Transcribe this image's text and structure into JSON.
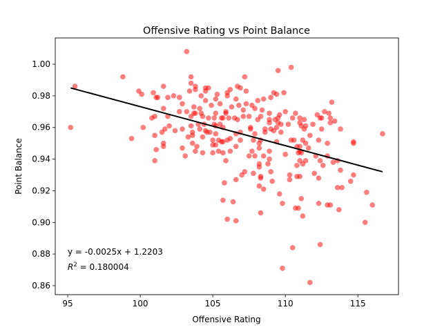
{
  "chart_data": {
    "type": "scatter",
    "title": "Offensive Rating vs Point Balance",
    "xlabel": "Offensive Rating",
    "ylabel": "Point Balance",
    "xlim": [
      94.14,
      117.8
    ],
    "ylim": [
      0.8543,
      1.0166
    ],
    "xticks": [
      95,
      100,
      105,
      110,
      115
    ],
    "xtick_labels": [
      "95",
      "100",
      "105",
      "110",
      "115"
    ],
    "yticks": [
      0.86,
      0.88,
      0.9,
      0.92,
      0.94,
      0.96,
      0.98,
      1.0
    ],
    "ytick_labels": [
      "0.86",
      "0.88",
      "0.90",
      "0.92",
      "0.94",
      "0.96",
      "0.98",
      "1.00"
    ],
    "grid": false,
    "point_color": "#ff0000",
    "line_color": "#000000",
    "annotation_equation": "y = -0.0025x + 1.2203",
    "annotation_r2_label": "R",
    "annotation_r2_sup": "2",
    "annotation_r2_value": " = 0.180004",
    "regression": {
      "slope": -0.0025,
      "intercept": 1.2203,
      "r2": 0.180004,
      "x_start": 95.2,
      "y_start": 0.985,
      "x_end": 116.7,
      "y_end": 0.932
    },
    "points": [
      [
        95.2,
        0.96
      ],
      [
        95.5,
        0.986
      ],
      [
        98.8,
        0.992
      ],
      [
        99.4,
        0.953
      ],
      [
        99.9,
        0.983
      ],
      [
        100.1,
        0.981
      ],
      [
        100.2,
        0.96
      ],
      [
        100.9,
        0.982
      ],
      [
        101.1,
        0.979
      ],
      [
        101.6,
        0.986
      ],
      [
        101.0,
        0.955
      ],
      [
        100.8,
        0.966
      ],
      [
        101.0,
        0.967
      ],
      [
        101.6,
        0.972
      ],
      [
        101.0,
        0.939
      ],
      [
        101.1,
        0.946
      ],
      [
        101.6,
        0.95
      ],
      [
        101.6,
        0.948
      ],
      [
        101.5,
        0.957
      ],
      [
        101.7,
        0.959
      ],
      [
        102.0,
        0.961
      ],
      [
        102.4,
        0.958
      ],
      [
        102.9,
        0.959
      ],
      [
        102.9,
        0.947
      ],
      [
        103.1,
        0.942
      ],
      [
        103.3,
        0.954
      ],
      [
        103.5,
        0.961
      ],
      [
        103.6,
        0.957
      ],
      [
        103.6,
        0.955
      ],
      [
        103.6,
        0.95
      ],
      [
        103.9,
        0.948
      ],
      [
        103.8,
        0.945
      ],
      [
        104.3,
        0.954
      ],
      [
        104.3,
        0.944
      ],
      [
        104.1,
        0.959
      ],
      [
        104.5,
        0.958
      ],
      [
        104.6,
        0.957
      ],
      [
        104.8,
        0.957
      ],
      [
        103.2,
        1.008
      ],
      [
        103.5,
        0.992
      ],
      [
        103.5,
        0.988
      ],
      [
        103.8,
        0.986
      ],
      [
        103.8,
        0.984
      ],
      [
        103.4,
        0.983
      ],
      [
        104.5,
        0.985
      ],
      [
        104.7,
        0.985
      ],
      [
        104.5,
        0.983
      ],
      [
        104.2,
        0.98
      ],
      [
        105.3,
        0.981
      ],
      [
        101.2,
        0.979
      ],
      [
        101.9,
        0.979
      ],
      [
        102.3,
        0.98
      ],
      [
        102.7,
        0.979
      ],
      [
        102.9,
        0.975
      ],
      [
        101.9,
        0.967
      ],
      [
        102.7,
        0.97
      ],
      [
        103.2,
        0.97
      ],
      [
        103.7,
        0.973
      ],
      [
        103.7,
        0.969
      ],
      [
        104.1,
        0.972
      ],
      [
        104.2,
        0.969
      ],
      [
        104.5,
        0.977
      ],
      [
        104.9,
        0.974
      ],
      [
        105.2,
        0.978
      ],
      [
        105.5,
        0.975
      ],
      [
        103.5,
        0.967
      ],
      [
        103.8,
        0.969
      ],
      [
        104.3,
        0.967
      ],
      [
        104.7,
        0.966
      ],
      [
        105.1,
        0.966
      ],
      [
        105.2,
        0.969
      ],
      [
        105.7,
        0.966
      ],
      [
        105.9,
        0.97
      ],
      [
        104.0,
        0.962
      ],
      [
        104.4,
        0.962
      ],
      [
        105.1,
        0.962
      ],
      [
        105.2,
        0.961
      ],
      [
        105.5,
        0.962
      ],
      [
        105.7,
        0.96
      ],
      [
        105.2,
        0.956
      ],
      [
        105.4,
        0.952
      ],
      [
        105.6,
        0.951
      ],
      [
        105.0,
        0.952
      ],
      [
        105.0,
        0.949
      ],
      [
        105.2,
        0.949
      ],
      [
        105.4,
        0.945
      ],
      [
        105.7,
        0.944
      ],
      [
        105.0,
        0.944
      ],
      [
        105.9,
        0.939
      ],
      [
        109.5,
        0.996
      ],
      [
        110.4,
        0.998
      ],
      [
        107.2,
        0.992
      ],
      [
        106.7,
        0.986
      ],
      [
        106.9,
        0.985
      ],
      [
        106.2,
        0.984
      ],
      [
        106.0,
        0.982
      ],
      [
        106.0,
        0.98
      ],
      [
        107.3,
        0.983
      ],
      [
        106.6,
        0.978
      ],
      [
        109.2,
        0.982
      ],
      [
        109.4,
        0.981
      ],
      [
        109.9,
        0.982
      ],
      [
        109.0,
        0.979
      ],
      [
        108.5,
        0.978
      ],
      [
        108.1,
        0.977
      ],
      [
        106.3,
        0.973
      ],
      [
        106.8,
        0.974
      ],
      [
        107.3,
        0.975
      ],
      [
        107.7,
        0.974
      ],
      [
        107.9,
        0.972
      ],
      [
        108.4,
        0.971
      ],
      [
        107.1,
        0.971
      ],
      [
        105.9,
        0.969
      ],
      [
        105.6,
        0.966
      ],
      [
        106.1,
        0.966
      ],
      [
        106.5,
        0.966
      ],
      [
        106.7,
        0.965
      ],
      [
        107.1,
        0.967
      ],
      [
        107.5,
        0.967
      ],
      [
        108.1,
        0.965
      ],
      [
        108.3,
        0.967
      ],
      [
        108.9,
        0.969
      ],
      [
        108.9,
        0.965
      ],
      [
        109.3,
        0.965
      ],
      [
        109.5,
        0.966
      ],
      [
        109.6,
        0.968
      ],
      [
        109.5,
        0.963
      ],
      [
        109.7,
        0.962
      ],
      [
        110.0,
        0.97
      ],
      [
        110.2,
        0.962
      ],
      [
        110.5,
        0.966
      ],
      [
        110.7,
        0.969
      ],
      [
        111.0,
        0.966
      ],
      [
        111.0,
        0.963
      ],
      [
        111.1,
        0.961
      ],
      [
        111.3,
        0.965
      ],
      [
        111.4,
        0.961
      ],
      [
        111.3,
        0.959
      ],
      [
        111.9,
        0.962
      ],
      [
        112.2,
        0.968
      ],
      [
        112.4,
        0.966
      ],
      [
        112.5,
        0.966
      ],
      [
        112.7,
        0.97
      ],
      [
        113.0,
        0.969
      ],
      [
        113.1,
        0.966
      ],
      [
        113.4,
        0.964
      ],
      [
        113.1,
        0.963
      ],
      [
        113.2,
        0.976
      ],
      [
        112.5,
        0.959
      ],
      [
        113.8,
        0.959
      ],
      [
        116.7,
        0.956
      ],
      [
        114.7,
        0.95
      ],
      [
        114.7,
        0.951
      ],
      [
        112.9,
        0.95
      ],
      [
        112.3,
        0.952
      ],
      [
        111.7,
        0.955
      ],
      [
        111.2,
        0.952
      ],
      [
        111.4,
        0.95
      ],
      [
        111.0,
        0.948
      ],
      [
        111.6,
        0.947
      ],
      [
        110.9,
        0.944
      ],
      [
        111.1,
        0.944
      ],
      [
        111.0,
        0.939
      ],
      [
        111.4,
        0.939
      ],
      [
        111.2,
        0.937
      ],
      [
        110.8,
        0.936
      ],
      [
        112.1,
        0.942
      ],
      [
        112.4,
        0.939
      ],
      [
        112.6,
        0.936
      ],
      [
        112.9,
        0.942
      ],
      [
        113.3,
        0.938
      ],
      [
        113.6,
        0.939
      ],
      [
        113.8,
        0.933
      ],
      [
        110.0,
        0.943
      ],
      [
        110.4,
        0.952
      ],
      [
        110.6,
        0.952
      ],
      [
        109.7,
        0.957
      ],
      [
        109.4,
        0.951
      ],
      [
        108.9,
        0.945
      ],
      [
        108.9,
        0.94
      ],
      [
        108.8,
        0.937
      ],
      [
        109.0,
        0.932
      ],
      [
        108.5,
        0.942
      ],
      [
        108.2,
        0.937
      ],
      [
        107.9,
        0.942
      ],
      [
        107.5,
        0.942
      ],
      [
        107.7,
        0.945
      ],
      [
        108.2,
        0.947
      ],
      [
        108.2,
        0.95
      ],
      [
        108.3,
        0.952
      ],
      [
        107.8,
        0.952
      ],
      [
        107.9,
        0.956
      ],
      [
        107.6,
        0.959
      ],
      [
        107.6,
        0.96
      ],
      [
        106.9,
        0.957
      ],
      [
        106.6,
        0.956
      ],
      [
        106.2,
        0.953
      ],
      [
        106.0,
        0.952
      ],
      [
        105.7,
        0.951
      ],
      [
        106.9,
        0.952
      ],
      [
        106.6,
        0.948
      ],
      [
        106.2,
        0.945
      ],
      [
        107.2,
        0.932
      ],
      [
        107.8,
        0.931
      ],
      [
        108.6,
        0.957
      ],
      [
        109.0,
        0.959
      ],
      [
        109.2,
        0.958
      ],
      [
        109.4,
        0.96
      ],
      [
        108.9,
        0.963
      ],
      [
        108.6,
        0.959
      ],
      [
        110.8,
        0.948
      ],
      [
        111.0,
        0.945
      ],
      [
        105.8,
        0.925
      ],
      [
        105.7,
        0.914
      ],
      [
        106.4,
        0.913
      ],
      [
        106.0,
        0.902
      ],
      [
        106.6,
        0.901
      ],
      [
        106.6,
        0.927
      ],
      [
        107.0,
        0.93
      ],
      [
        108.2,
        0.935
      ],
      [
        108.3,
        0.929
      ],
      [
        108.3,
        0.928
      ],
      [
        108.2,
        0.923
      ],
      [
        108.5,
        0.921
      ],
      [
        109.1,
        0.926
      ],
      [
        108.3,
        0.906
      ],
      [
        109.6,
        0.918
      ],
      [
        109.8,
        0.912
      ],
      [
        110.3,
        0.93
      ],
      [
        110.3,
        0.927
      ],
      [
        110.8,
        0.929
      ],
      [
        111.0,
        0.929
      ],
      [
        111.1,
        0.915
      ],
      [
        110.7,
        0.909
      ],
      [
        110.9,
        0.909
      ],
      [
        111.2,
        0.904
      ],
      [
        112.0,
        0.931
      ],
      [
        112.3,
        0.928
      ],
      [
        112.3,
        0.912
      ],
      [
        112.9,
        0.911
      ],
      [
        113.1,
        0.911
      ],
      [
        113.7,
        0.908
      ],
      [
        113.6,
        0.922
      ],
      [
        113.9,
        0.922
      ],
      [
        114.7,
        0.93
      ],
      [
        114.5,
        0.926
      ],
      [
        115.6,
        0.919
      ],
      [
        116.0,
        0.911
      ],
      [
        115.5,
        0.9
      ],
      [
        110.5,
        0.884
      ],
      [
        112.4,
        0.886
      ],
      [
        109.8,
        0.871
      ],
      [
        111.7,
        0.862
      ]
    ]
  }
}
